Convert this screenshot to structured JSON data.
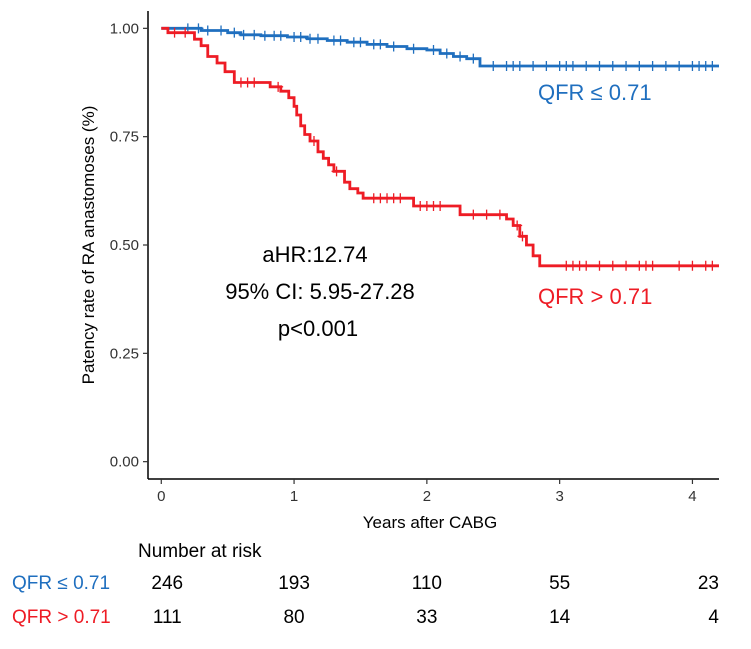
{
  "chart_data": {
    "type": "line",
    "subtype": "kaplan-meier",
    "title": "",
    "xlabel": "Years after CABG",
    "ylabel": "Patency rate of RA anastomoses (%)",
    "xlim": [
      -0.1,
      4.2
    ],
    "ylim": [
      -0.04,
      1.04
    ],
    "xticks": [
      0,
      1,
      2,
      3,
      4
    ],
    "xtick_labels": [
      "0",
      "1",
      "2",
      "3",
      "4"
    ],
    "yticks": [
      0,
      0.25,
      0.5,
      0.75,
      1.0
    ],
    "ytick_labels": [
      "0.00",
      "0.25",
      "0.50",
      "0.75",
      "1.00"
    ],
    "grid": false,
    "series": [
      {
        "name": "QFR ≤ 0.71",
        "color": "#1f6fbf",
        "label": "QFR ≤ 0.71",
        "x": [
          0,
          0.12,
          0.3,
          0.5,
          0.6,
          0.75,
          0.95,
          1.1,
          1.25,
          1.4,
          1.55,
          1.7,
          1.85,
          2.0,
          2.1,
          2.2,
          2.3,
          2.4,
          4.2
        ],
        "y": [
          1.0,
          1.0,
          0.995,
          0.99,
          0.985,
          0.983,
          0.98,
          0.976,
          0.972,
          0.968,
          0.963,
          0.958,
          0.953,
          0.95,
          0.942,
          0.935,
          0.93,
          0.913,
          0.913
        ],
        "censor_x": [
          0.2,
          0.28,
          0.35,
          0.45,
          0.55,
          0.62,
          0.7,
          0.78,
          0.85,
          0.9,
          1.0,
          1.05,
          1.12,
          1.18,
          1.3,
          1.35,
          1.45,
          1.5,
          1.6,
          1.65,
          1.75,
          1.9,
          2.05,
          2.15,
          2.25,
          2.35,
          2.5,
          2.6,
          2.65,
          2.7,
          2.8,
          2.9,
          3.0,
          3.05,
          3.1,
          3.2,
          3.3,
          3.4,
          3.5,
          3.6,
          3.7,
          3.8,
          3.9,
          4.0,
          4.05,
          4.1,
          4.15
        ]
      },
      {
        "name": "QFR > 0.71",
        "color": "#ee1c25",
        "label": "QFR > 0.71",
        "x": [
          0,
          0.05,
          0.25,
          0.3,
          0.35,
          0.42,
          0.48,
          0.55,
          0.82,
          0.9,
          0.96,
          1.0,
          1.02,
          1.05,
          1.08,
          1.12,
          1.18,
          1.22,
          1.26,
          1.3,
          1.38,
          1.42,
          1.48,
          1.52,
          1.9,
          2.25,
          2.6,
          2.65,
          2.7,
          2.75,
          2.8,
          2.85,
          4.2
        ],
        "y": [
          1.0,
          0.99,
          0.975,
          0.96,
          0.935,
          0.92,
          0.9,
          0.875,
          0.865,
          0.855,
          0.84,
          0.82,
          0.8,
          0.775,
          0.755,
          0.74,
          0.715,
          0.7,
          0.685,
          0.67,
          0.645,
          0.63,
          0.62,
          0.608,
          0.59,
          0.57,
          0.56,
          0.545,
          0.52,
          0.5,
          0.475,
          0.452,
          0.452
        ],
        "censor_x": [
          0.1,
          0.18,
          0.6,
          0.65,
          0.7,
          0.88,
          1.15,
          1.32,
          1.6,
          1.65,
          1.7,
          1.75,
          1.8,
          1.95,
          2.0,
          2.05,
          2.1,
          2.35,
          2.45,
          2.55,
          2.68,
          2.72,
          3.05,
          3.1,
          3.15,
          3.2,
          3.3,
          3.4,
          3.5,
          3.6,
          3.65,
          3.7,
          3.9,
          4.0,
          4.1,
          4.15
        ]
      }
    ],
    "annotations": {
      "hr": "aHR:12.74",
      "ci": "95% CI: 5.95-27.28",
      "p": "p<0.001"
    },
    "risk_table": {
      "title": "Number at risk",
      "times": [
        0,
        1,
        2,
        3,
        4
      ],
      "rows": [
        {
          "label": "QFR ≤ 0.71",
          "color": "#1f6fbf",
          "counts": [
            "246",
            "193",
            "110",
            "55",
            "23"
          ]
        },
        {
          "label": "QFR > 0.71",
          "color": "#ee1c25",
          "counts": [
            "111",
            "80",
            "33",
            "14",
            "4"
          ]
        }
      ]
    }
  }
}
